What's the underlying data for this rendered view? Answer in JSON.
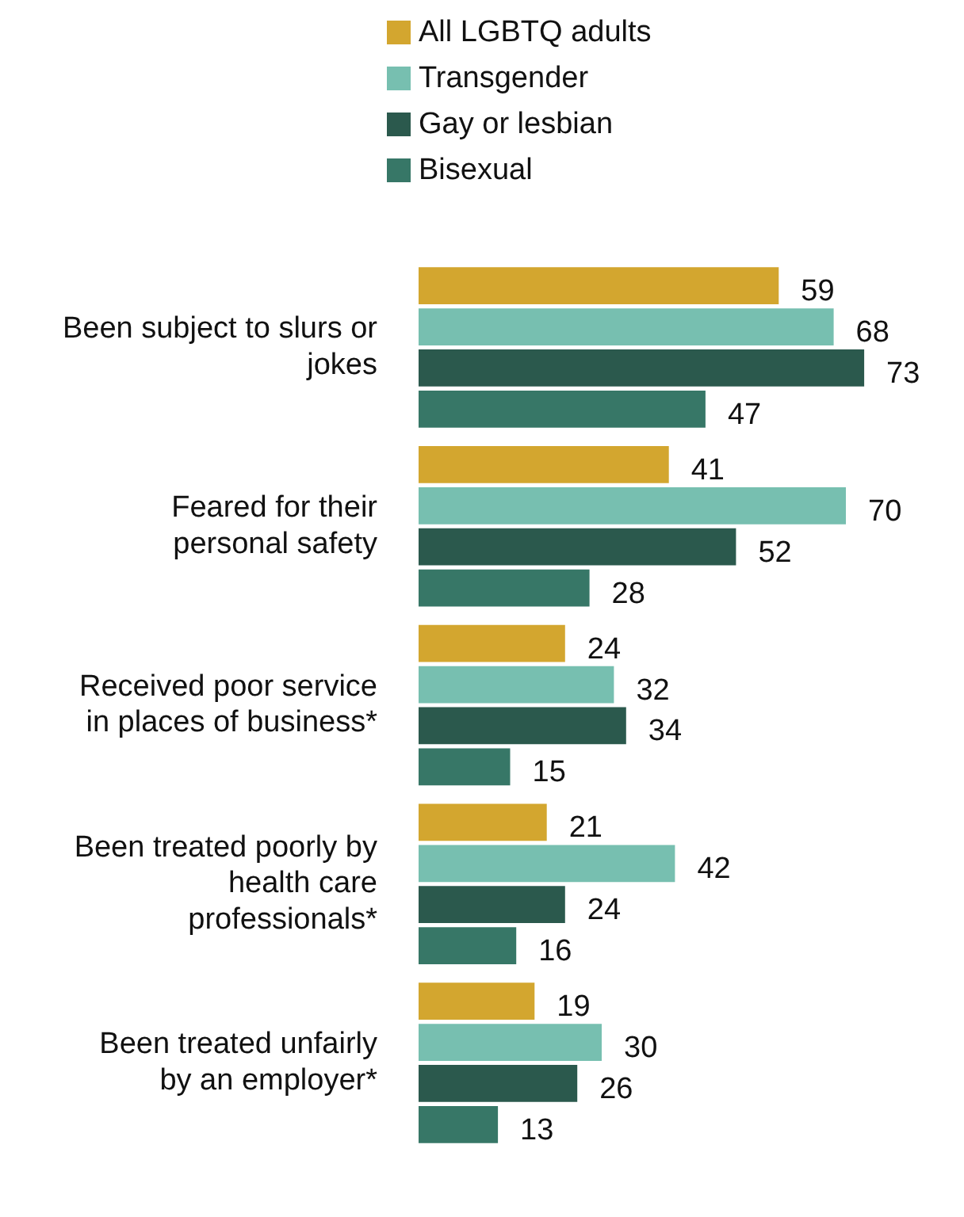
{
  "chart_data": {
    "type": "bar",
    "orientation": "horizontal",
    "categories": [
      "Been subject to slurs or jokes",
      "Feared for their personal safety",
      "Received poor service in places of business*",
      "Been treated poorly by health care professionals*",
      "Been treated unfairly by an employer*"
    ],
    "series": [
      {
        "name": "All LGBTQ adults",
        "color": "#d3a62f",
        "values": [
          59,
          41,
          24,
          21,
          19
        ]
      },
      {
        "name": "Transgender",
        "color": "#77bfb0",
        "values": [
          68,
          70,
          32,
          42,
          30
        ]
      },
      {
        "name": "Gay or lesbian",
        "color": "#2b594d",
        "values": [
          73,
          52,
          34,
          24,
          26
        ]
      },
      {
        "name": "Bisexual",
        "color": "#377767",
        "values": [
          47,
          28,
          15,
          16,
          13
        ]
      }
    ],
    "data_labels": true,
    "legend": "top"
  }
}
